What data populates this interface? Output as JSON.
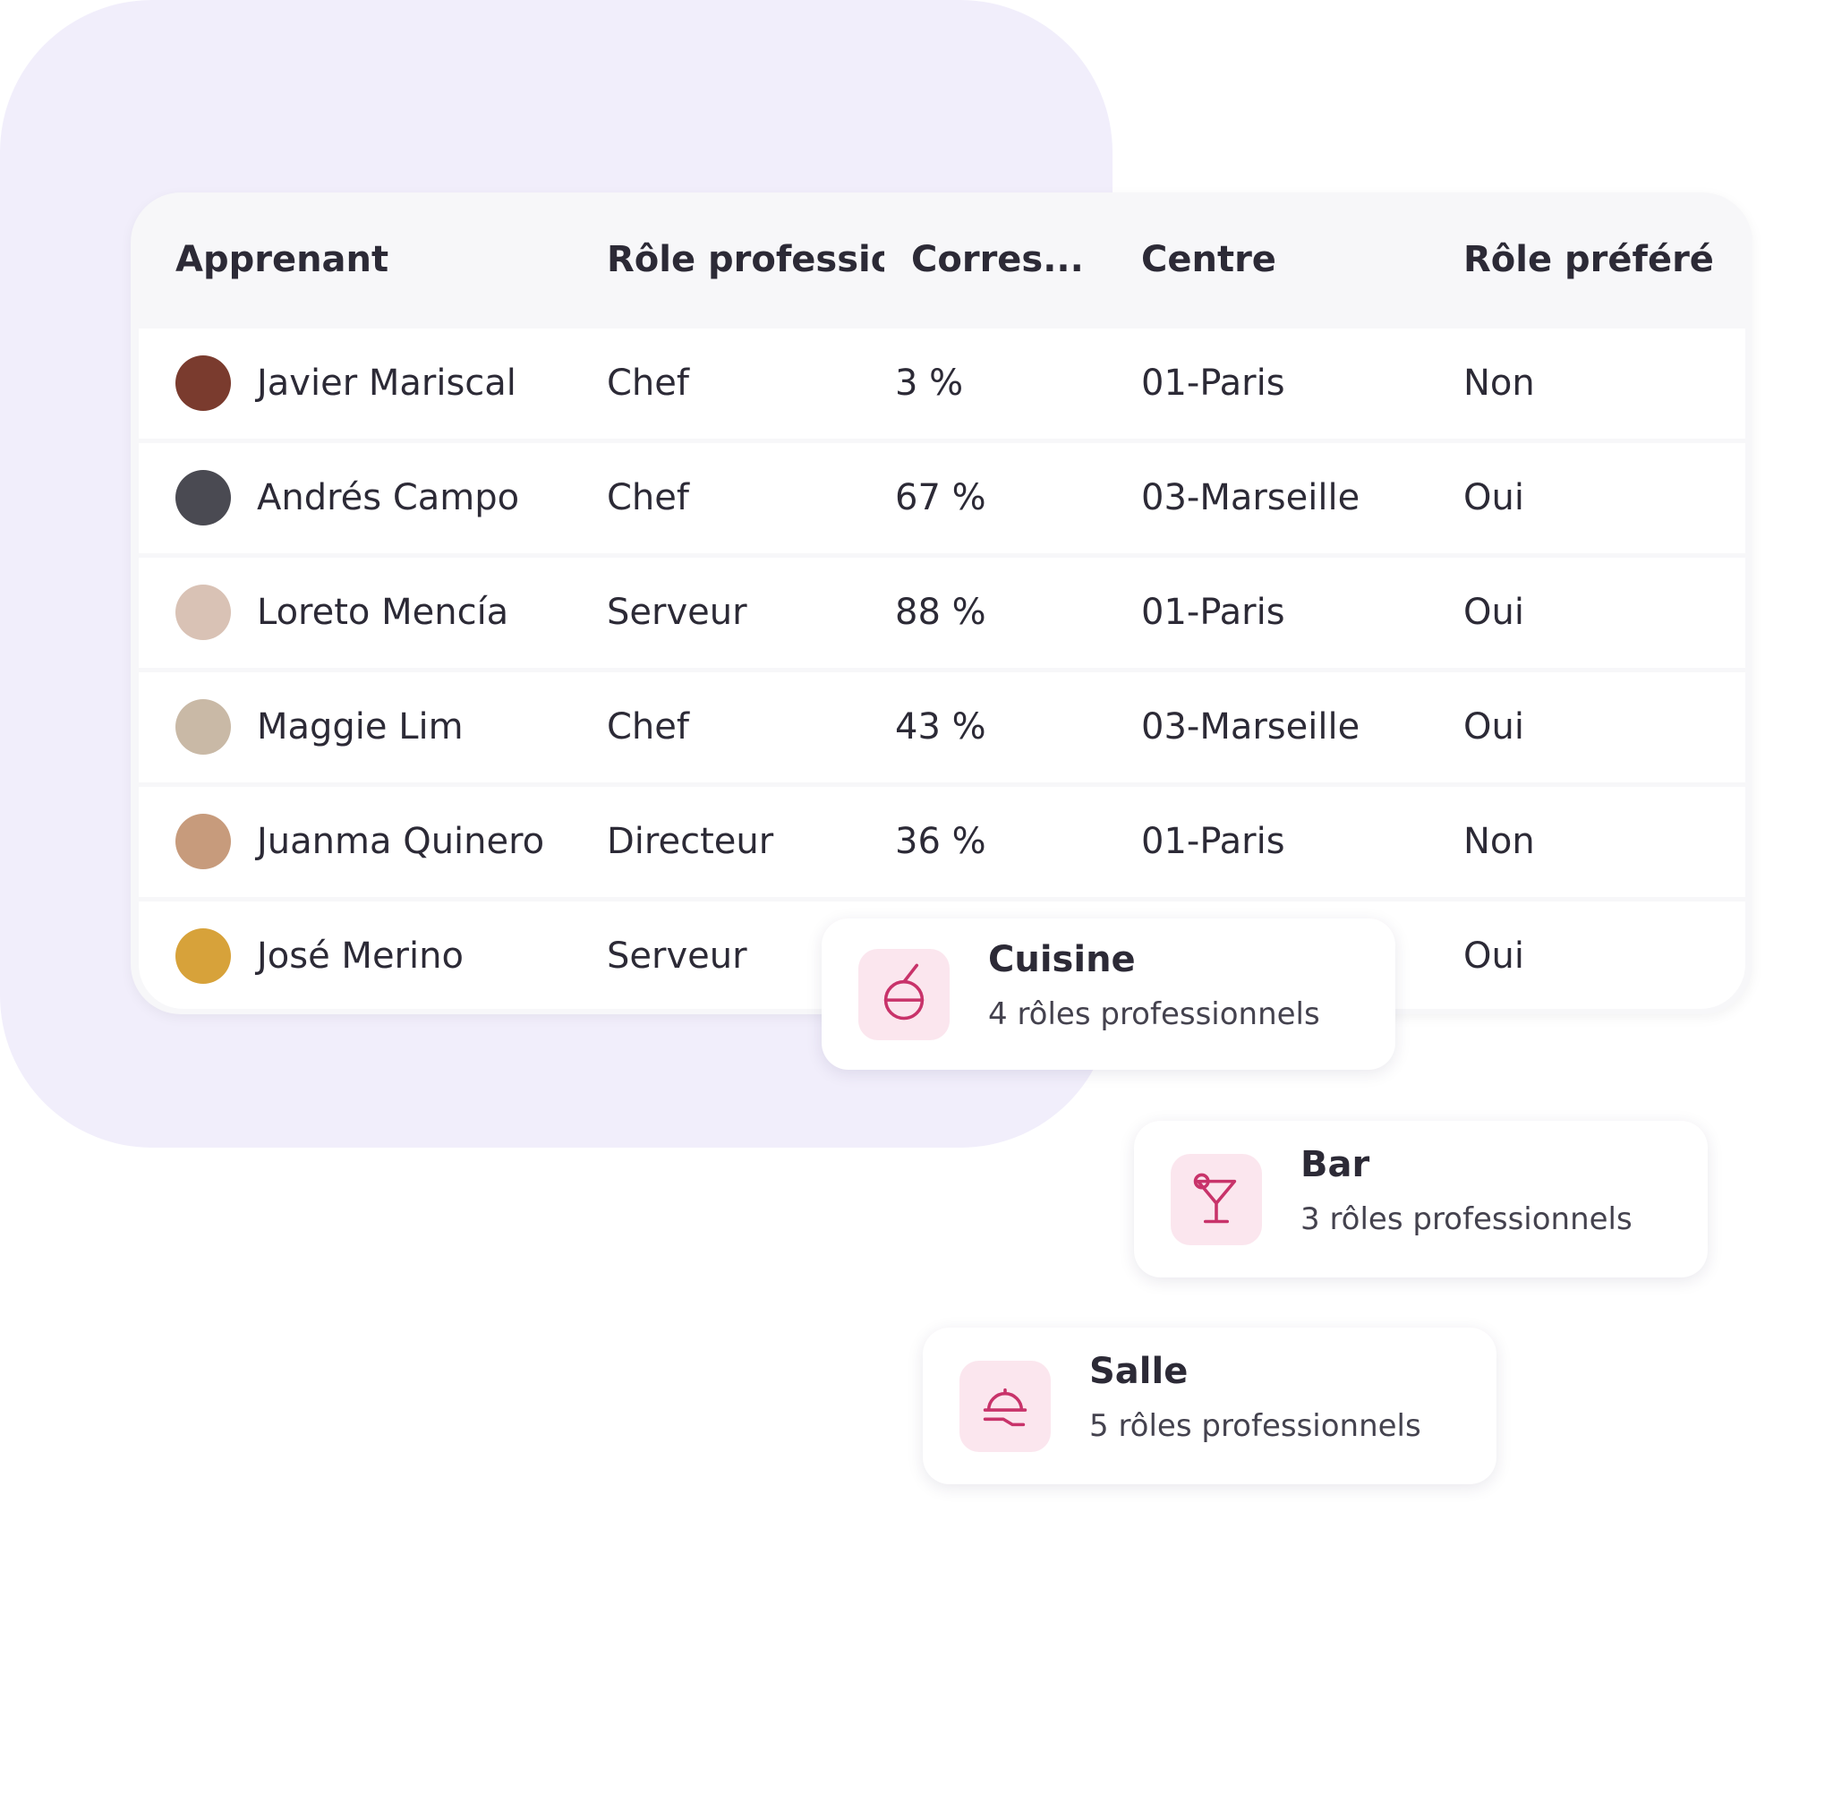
{
  "table": {
    "columns": [
      "Apprenant",
      "Rôle professionnel",
      "Corres...",
      "Centre",
      "Rôle préféré"
    ],
    "rows": [
      [
        "Javier Mariscal",
        "Chef",
        "3 %",
        "01-Paris",
        "Non"
      ],
      [
        "Andrés Campo",
        "Chef",
        "67 %",
        "03-Marseille",
        "Oui"
      ],
      [
        "Loreto Mencía",
        "Serveur",
        "88 %",
        "01-Paris",
        "Oui"
      ],
      [
        "Maggie Lim",
        "Chef",
        "43 %",
        "03-Marseille",
        "Oui"
      ],
      [
        "Juanma Quinero",
        "Directeur",
        "36 %",
        "01-Paris",
        "Non"
      ],
      [
        "José Merino",
        "Serveur",
        null,
        null,
        "Oui"
      ]
    ]
  },
  "cards": [
    {
      "title": "Cuisine",
      "subtitle": "4 rôles professionnels"
    },
    {
      "title": "Bar",
      "subtitle": "3 rôles professionnels"
    },
    {
      "title": "Salle",
      "subtitle": "5 rôles professionnels"
    }
  ]
}
